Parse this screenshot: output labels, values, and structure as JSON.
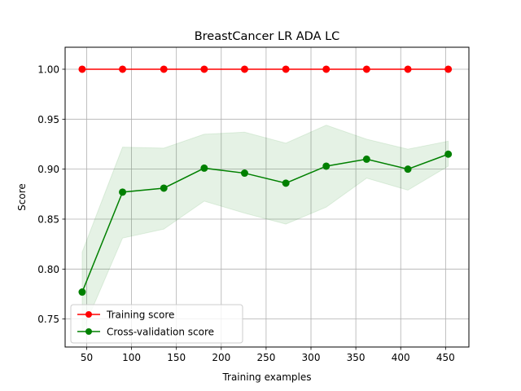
{
  "chart_data": {
    "type": "line",
    "title": "BreastCancer LR ADA LC",
    "xlabel": "Training examples",
    "ylabel": "Score",
    "xlim": [
      26,
      476
    ],
    "ylim": [
      0.722,
      1.022
    ],
    "xticks": [
      50,
      100,
      150,
      200,
      250,
      300,
      350,
      400,
      450
    ],
    "yticks": [
      0.75,
      0.8,
      0.85,
      0.9,
      0.95,
      1.0
    ],
    "xtick_labels": [
      "50",
      "100",
      "150",
      "200",
      "250",
      "300",
      "350",
      "400",
      "450"
    ],
    "ytick_labels": [
      "0.75",
      "0.80",
      "0.85",
      "0.90",
      "0.95",
      "1.00"
    ],
    "grid": true,
    "legend_position": "lower-left",
    "x": [
      45,
      90,
      136,
      181,
      226,
      272,
      317,
      362,
      408,
      453
    ],
    "series": [
      {
        "name": "Training score",
        "color": "#ff0000",
        "marker": "circle",
        "values": [
          1.0,
          1.0,
          1.0,
          1.0,
          1.0,
          1.0,
          1.0,
          1.0,
          1.0,
          1.0
        ],
        "band_lower": [
          1.0,
          1.0,
          1.0,
          1.0,
          1.0,
          1.0,
          1.0,
          1.0,
          1.0,
          1.0
        ],
        "band_upper": [
          1.0,
          1.0,
          1.0,
          1.0,
          1.0,
          1.0,
          1.0,
          1.0,
          1.0,
          1.0
        ]
      },
      {
        "name": "Cross-validation score",
        "color": "#008000",
        "marker": "circle",
        "values": [
          0.777,
          0.877,
          0.881,
          0.901,
          0.896,
          0.886,
          0.903,
          0.91,
          0.9,
          0.915
        ],
        "band_lower": [
          0.737,
          0.831,
          0.84,
          0.868,
          0.856,
          0.845,
          0.862,
          0.891,
          0.879,
          0.903
        ],
        "band_upper": [
          0.817,
          0.922,
          0.921,
          0.935,
          0.937,
          0.926,
          0.944,
          0.93,
          0.92,
          0.928
        ]
      }
    ]
  }
}
